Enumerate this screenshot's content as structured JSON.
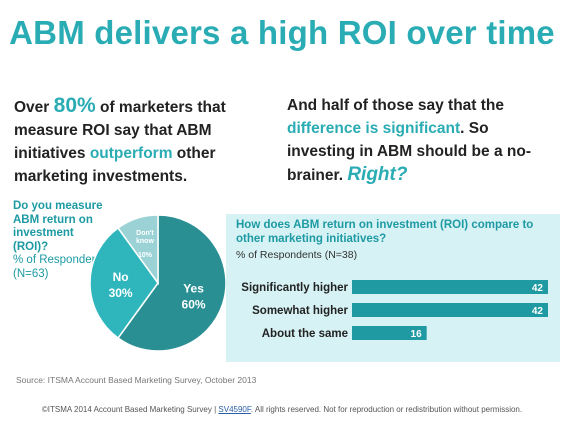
{
  "title": "ABM delivers a high ROI over time",
  "left_text": {
    "p1": "Over ",
    "pct": "80%",
    "p2": " of marketers that measure ROI say that ABM initiatives ",
    "hl": "outperform",
    "p3": " other marketing investments."
  },
  "right_text": {
    "p1": "And half of those say that the ",
    "hl": "difference is significant",
    "p2": ". So investing in ABM should be a no-brainer. ",
    "right": "Right?"
  },
  "pie_question": {
    "line": "Do you measure ABM return on investment (ROI)?",
    "sub": "% of Respondents (N=63)"
  },
  "bar_question": {
    "line": "How does ABM return on investment (ROI) compare to other marketing initiatives?",
    "sub": "% of Respondents (N=38)"
  },
  "colors": {
    "accent": "#2aacb4",
    "pie_yes": "#2a8f93",
    "pie_no": "#2fb6bd",
    "pie_dont": "#9ad2d6",
    "bar": "#1f9aa2",
    "panel": "#d6f2f4"
  },
  "chart_data": [
    {
      "type": "pie",
      "slices": [
        {
          "label": "Yes",
          "value": 60,
          "value_label": "60%"
        },
        {
          "label": "No",
          "value": 30,
          "value_label": "30%"
        },
        {
          "label": "Don't know",
          "value": 10,
          "value_label": "10%"
        }
      ]
    },
    {
      "type": "bar",
      "orientation": "horizontal",
      "categories": [
        "Significantly higher",
        "Somewhat higher",
        "About the same"
      ],
      "values": [
        42,
        42,
        16
      ],
      "xlim": [
        0,
        42
      ]
    }
  ],
  "source": "Source: ITSMA Account Based Marketing Survey, October 2013",
  "footer": {
    "pre": "©ITSMA 2014 Account Based Marketing Survey | ",
    "link": "SV4590F",
    "post": ". All rights reserved. Not for reproduction or redistribution without permission."
  }
}
